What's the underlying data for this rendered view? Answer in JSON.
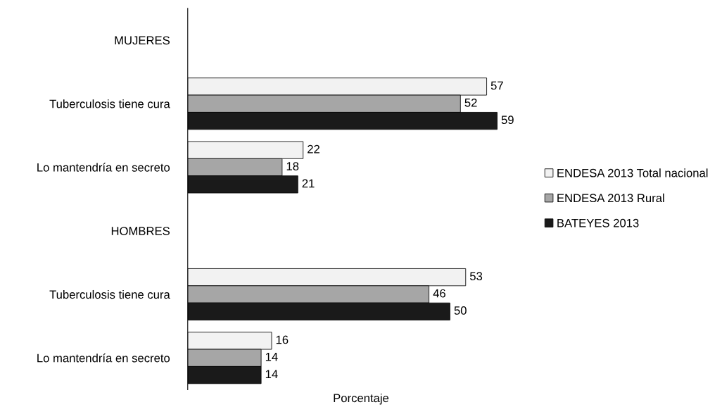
{
  "chart_data": {
    "type": "bar",
    "orientation": "horizontal",
    "xlabel": "Porcentaje",
    "categories": [
      "MUJERES",
      "Tuberculosis tiene cura",
      "Lo mantendría en secreto",
      "HOMBRES",
      "Tuberculosis tiene cura",
      "Lo mantendría en secreto"
    ],
    "series": [
      {
        "name": "ENDESA 2013 Total nacional",
        "color": "#f2f2f2",
        "values": [
          null,
          57,
          22,
          null,
          53,
          16
        ]
      },
      {
        "name": "ENDESA 2013 Rural",
        "color": "#a6a6a6",
        "values": [
          null,
          52,
          18,
          null,
          46,
          14
        ]
      },
      {
        "name": "BATEYES 2013",
        "color": "#1a1a1a",
        "values": [
          null,
          59,
          21,
          null,
          50,
          14
        ]
      }
    ],
    "tick_labels": "y",
    "data_labels": true,
    "legend": "right",
    "grid": false
  }
}
